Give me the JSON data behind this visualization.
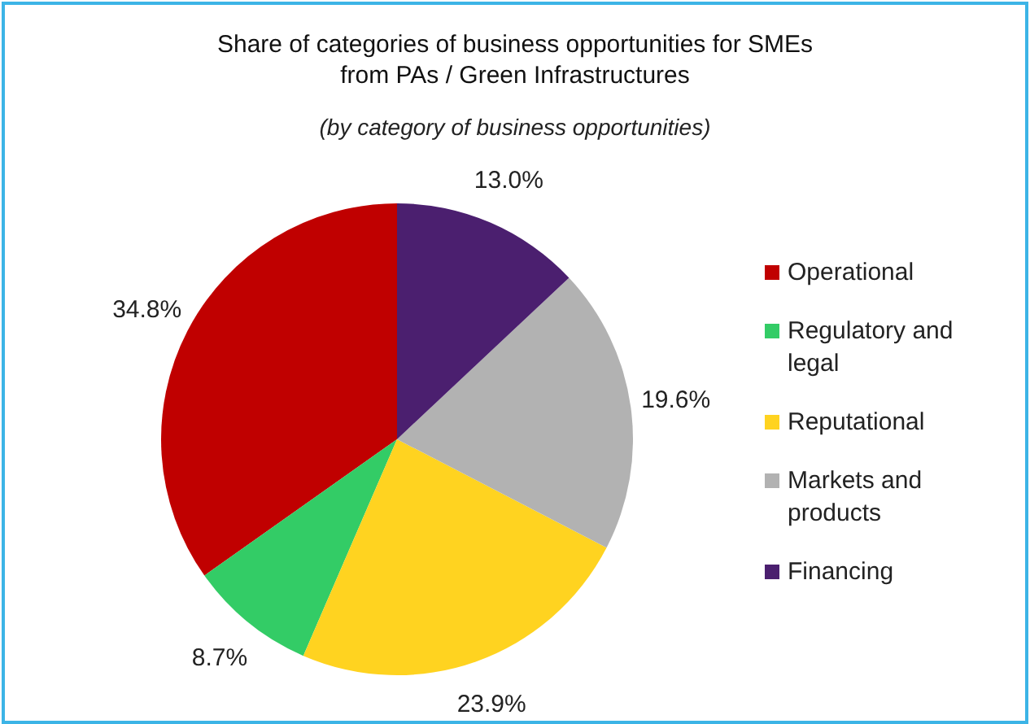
{
  "chart_data": {
    "type": "pie",
    "title": "Share of categories of business opportunities for SMEs\nfrom PAs / Green Infrastructures",
    "subtitle": "(by category of business opportunities)",
    "categories": [
      "Operational",
      "Regulatory and legal",
      "Reputational",
      "Markets and products",
      "Financing"
    ],
    "values": [
      34.8,
      8.7,
      23.9,
      19.6,
      13.0
    ],
    "colors": [
      "#c00000",
      "#33cc66",
      "#ffd320",
      "#b2b2b2",
      "#4b1f6f"
    ],
    "value_labels": [
      "34.8%",
      "8.7%",
      "23.9%",
      "19.6%",
      "13.0%"
    ],
    "legend": "right"
  }
}
